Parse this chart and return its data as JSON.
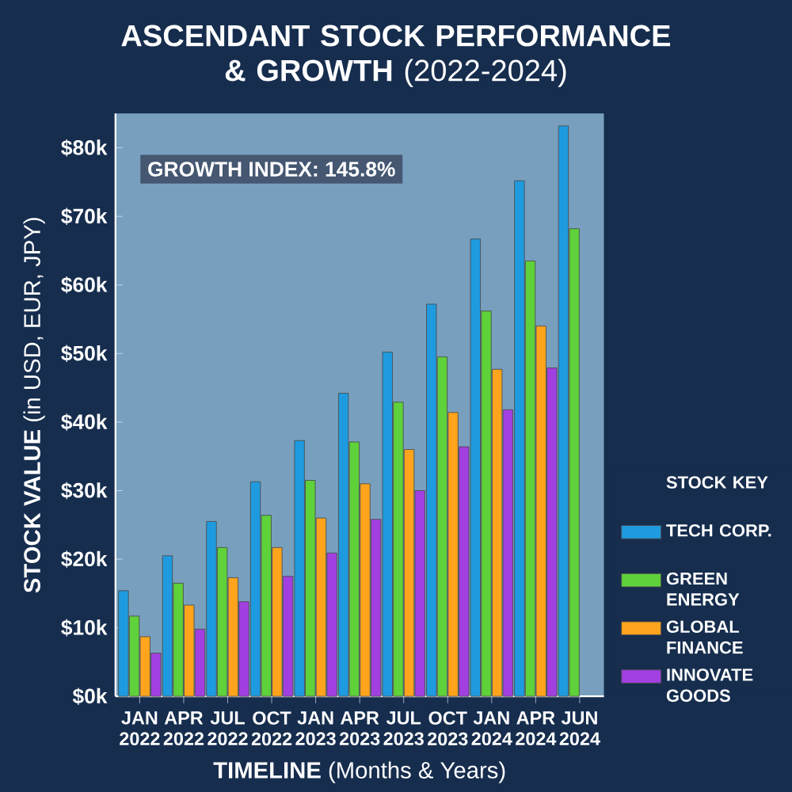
{
  "chart_data": {
    "type": "bar",
    "title": "**ASCENDANT STOCK PERFORMANCE & GROWTH** (2022-2024)",
    "xlabel": "**TIMELINE** (Months & Years)",
    "ylabel": "**STOCK VALUE** (in USD, EUR, JPY)",
    "legend_title": "STOCK KEY",
    "legend": "right",
    "annotations": [
      "GROWTH INDEX: 145.8%"
    ],
    "categories": [
      "JAN 2022",
      "APR 2022",
      "JUL 2022",
      "OCT 2022",
      "JAN 2023",
      "APR 2023",
      "JUL 2023",
      "OCT 2023",
      "JAN 2024",
      "APR 2024",
      "JUN 2024"
    ],
    "series": [
      {
        "name": "TECH CORP.",
        "color": "#1e9be0",
        "values": [
          15.4,
          20.5,
          25.5,
          31.3,
          37.3,
          44.2,
          50.2,
          57.2,
          66.7,
          75.2,
          83.2
        ]
      },
      {
        "name": "GREEN ENERGY",
        "color": "#5fd13a",
        "values": [
          11.7,
          16.5,
          21.7,
          26.4,
          31.5,
          37.1,
          42.9,
          49.5,
          56.2,
          63.5,
          68.2
        ]
      },
      {
        "name": "GLOBAL FINANCE",
        "color": "#ffa41c",
        "values": [
          8.7,
          13.3,
          17.3,
          21.7,
          26.0,
          31.0,
          36.0,
          41.4,
          47.7,
          54.0,
          null
        ]
      },
      {
        "name": "INNOVATE GOODS",
        "color": "#a13fe0",
        "values": [
          6.3,
          9.8,
          13.8,
          17.5,
          20.9,
          25.8,
          30.0,
          36.4,
          41.8,
          47.9,
          null
        ]
      }
    ],
    "ylim": [
      0,
      85
    ],
    "yticks": [
      {
        "value": 0,
        "label": "$0k"
      },
      {
        "value": 10,
        "label": "$10k"
      },
      {
        "value": 20,
        "label": "$20k"
      },
      {
        "value": 30,
        "label": "$30k"
      },
      {
        "value": 40,
        "label": "$40k"
      },
      {
        "value": 50,
        "label": "$50k"
      },
      {
        "value": 60,
        "label": "$60k"
      },
      {
        "value": 70,
        "label": "$70k"
      },
      {
        "value": 80,
        "label": "$80k"
      }
    ]
  }
}
